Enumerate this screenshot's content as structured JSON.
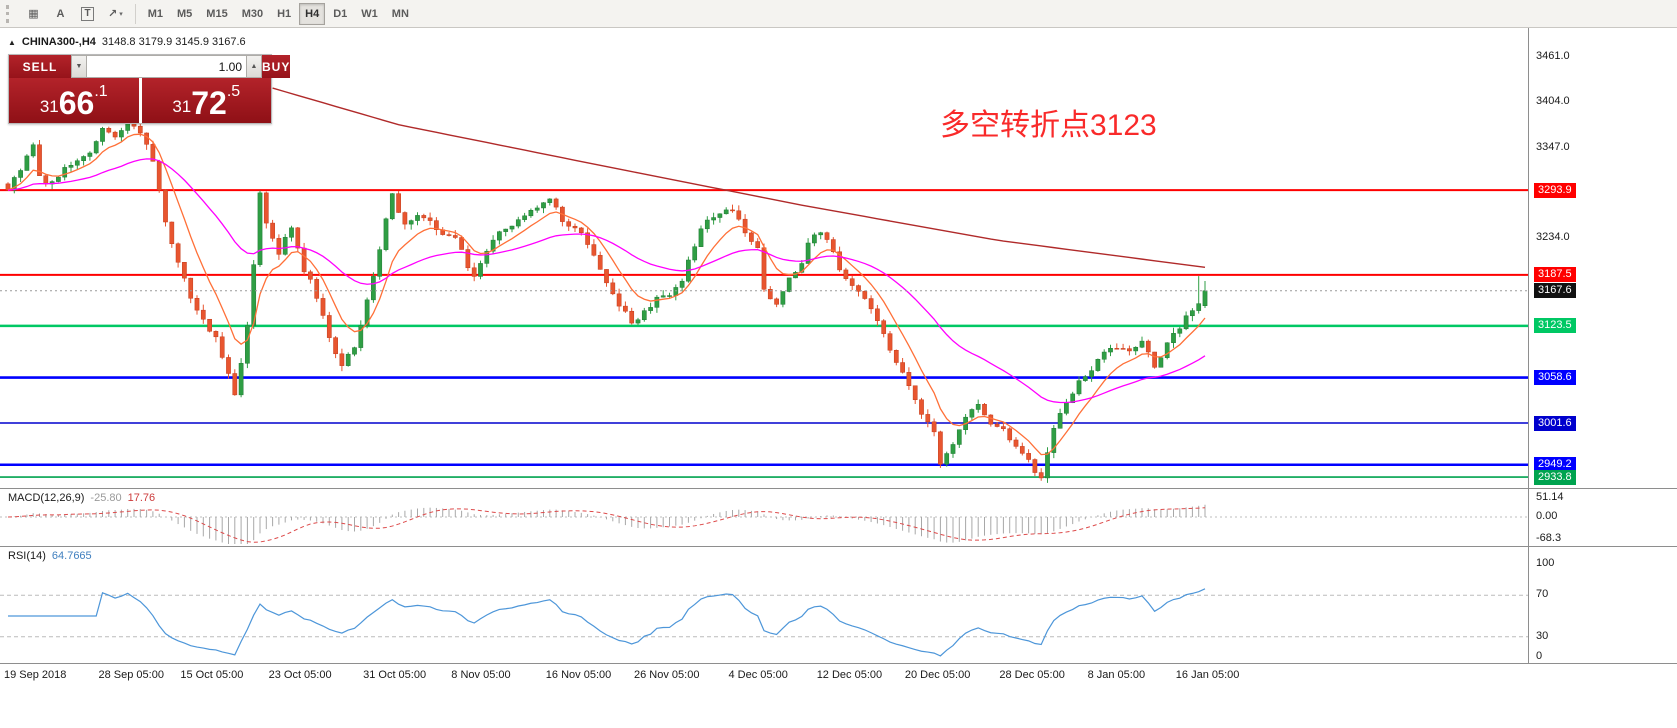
{
  "colors": {
    "up": "#2f9e44",
    "up_dark": "#1f7a33",
    "down": "#e8552f",
    "down_dark": "#c43c1c",
    "ma_fast": "#ff7038",
    "ma_mid": "#ff00ff",
    "ma_long": "#b02a2a",
    "macd_hist": "#a8a8a8",
    "macd_signal": "#dd4b4b",
    "rsi_line": "#4d96d9",
    "current_badge": "#111111",
    "annotation": "#f92a2a",
    "panel_red": "#a81a1f"
  },
  "toolbar": {
    "tools": [
      {
        "name": "grid-tool",
        "glyph": "▦",
        "dropdown": false
      },
      {
        "name": "text-tool",
        "glyph": "A",
        "dropdown": false
      },
      {
        "name": "textbox-tool",
        "glyph": "T",
        "dropdown": false
      },
      {
        "name": "arrow-tool",
        "glyph": "↗",
        "dropdown": true
      }
    ],
    "timeframes": [
      "M1",
      "M5",
      "M15",
      "M30",
      "H1",
      "H4",
      "D1",
      "W1",
      "MN"
    ],
    "active_timeframe": "H4"
  },
  "header": {
    "symbol_icon": "▲",
    "symbol": "CHINA300-,H4",
    "ohlc": "3148.8 3179.9 3145.9 3167.6"
  },
  "trade_panel": {
    "sell_label": "SELL",
    "buy_label": "BUY",
    "volume": "1.00",
    "sell_price_prefix": "31",
    "sell_price_big": "66",
    "sell_price_suffix": ".1",
    "buy_price_prefix": "31",
    "buy_price_big": "72",
    "buy_price_suffix": ".5"
  },
  "annotation": {
    "text": "多空转折点3123"
  },
  "price_axis": {
    "scale_labels": [
      {
        "text": "3461.0",
        "price": 3461.0
      },
      {
        "text": "3404.0",
        "price": 3404.0
      },
      {
        "text": "3347.0",
        "price": 3347.0
      },
      {
        "text": "3234.0",
        "price": 3234.0
      }
    ],
    "badges": [
      {
        "text": "3293.9",
        "price": 3293.9,
        "color": "#ff0000"
      },
      {
        "text": "3187.5",
        "price": 3187.5,
        "color": "#ff0000"
      },
      {
        "text": "3167.6",
        "price": 3167.6,
        "color": "#111111"
      },
      {
        "text": "3123.5",
        "price": 3123.5,
        "color": "#00c864"
      },
      {
        "text": "3058.6",
        "price": 3058.6,
        "color": "#0000ff"
      },
      {
        "text": "3001.6",
        "price": 3001.6,
        "color": "#0000cd"
      },
      {
        "text": "2949.2",
        "price": 2949.2,
        "color": "#0000ff"
      },
      {
        "text": "2933.8",
        "price": 2933.8,
        "color": "#00a34f"
      }
    ]
  },
  "macd_panel": {
    "name": "MACD(12,26,9)",
    "value_main": "-25.80",
    "value_signal": "17.76",
    "axis_labels": [
      "51.14",
      "0.00",
      "-68.3"
    ]
  },
  "rsi_panel": {
    "name": "RSI(14)",
    "value": "64.7665",
    "axis_labels": [
      "100",
      "70",
      "30",
      "0"
    ],
    "levels": [
      70,
      30
    ]
  },
  "time_axis": [
    {
      "label": "19 Sep 2018",
      "i": 0
    },
    {
      "label": "28 Sep 05:00",
      "i": 15
    },
    {
      "label": "15 Oct 05:00",
      "i": 28
    },
    {
      "label": "23 Oct 05:00",
      "i": 42
    },
    {
      "label": "31 Oct 05:00",
      "i": 57
    },
    {
      "label": "8 Nov 05:00",
      "i": 71
    },
    {
      "label": "16 Nov 05:00",
      "i": 86
    },
    {
      "label": "26 Nov 05:00",
      "i": 100
    },
    {
      "label": "4 Dec 05:00",
      "i": 115
    },
    {
      "label": "12 Dec 05:00",
      "i": 129
    },
    {
      "label": "20 Dec 05:00",
      "i": 143
    },
    {
      "label": "28 Dec 05:00",
      "i": 158
    },
    {
      "label": "8 Jan 05:00",
      "i": 172
    },
    {
      "label": "16 Jan 05:00",
      "i": 186
    }
  ],
  "chart_data": {
    "type": "candlestick",
    "symbol": "CHINA300-",
    "timeframe": "H4",
    "title": "CHINA300-,H4",
    "current_ohlc": {
      "open": 3148.8,
      "high": 3179.9,
      "low": 3145.9,
      "close": 3167.6
    },
    "bid": 3166.1,
    "ask": 3172.5,
    "current_price": 3167.6,
    "y_range": [
      2933.8,
      3461.0
    ],
    "candle_count": 191,
    "x_range": [
      "19 Sep 2018",
      "16 Jan 2019"
    ],
    "price_path": [
      [
        0,
        3295
      ],
      [
        2,
        3318
      ],
      [
        4,
        3352
      ],
      [
        5,
        3310
      ],
      [
        7,
        3302
      ],
      [
        9,
        3318
      ],
      [
        11,
        3328
      ],
      [
        13,
        3345
      ],
      [
        15,
        3370
      ],
      [
        17,
        3360
      ],
      [
        19,
        3382
      ],
      [
        21,
        3370
      ],
      [
        23,
        3330
      ],
      [
        25,
        3255
      ],
      [
        27,
        3200
      ],
      [
        29,
        3160
      ],
      [
        31,
        3130
      ],
      [
        33,
        3110
      ],
      [
        35,
        3060
      ],
      [
        36,
        3035
      ],
      [
        38,
        3120
      ],
      [
        39,
        3200
      ],
      [
        40,
        3290
      ],
      [
        41,
        3250
      ],
      [
        43,
        3215
      ],
      [
        45,
        3248
      ],
      [
        47,
        3195
      ],
      [
        49,
        3160
      ],
      [
        51,
        3105
      ],
      [
        53,
        3075
      ],
      [
        55,
        3095
      ],
      [
        57,
        3160
      ],
      [
        59,
        3220
      ],
      [
        61,
        3288
      ],
      [
        63,
        3250
      ],
      [
        65,
        3262
      ],
      [
        67,
        3255
      ],
      [
        69,
        3240
      ],
      [
        71,
        3232
      ],
      [
        73,
        3200
      ],
      [
        74,
        3186
      ],
      [
        76,
        3215
      ],
      [
        78,
        3240
      ],
      [
        80,
        3252
      ],
      [
        82,
        3262
      ],
      [
        84,
        3272
      ],
      [
        86,
        3282
      ],
      [
        88,
        3255
      ],
      [
        90,
        3248
      ],
      [
        92,
        3230
      ],
      [
        94,
        3198
      ],
      [
        96,
        3162
      ],
      [
        98,
        3140
      ],
      [
        99,
        3126
      ],
      [
        101,
        3142
      ],
      [
        103,
        3158
      ],
      [
        105,
        3162
      ],
      [
        107,
        3180
      ],
      [
        109,
        3225
      ],
      [
        111,
        3258
      ],
      [
        113,
        3266
      ],
      [
        115,
        3270
      ],
      [
        117,
        3236
      ],
      [
        119,
        3222
      ],
      [
        120,
        3165
      ],
      [
        122,
        3148
      ],
      [
        124,
        3182
      ],
      [
        126,
        3202
      ],
      [
        127,
        3228
      ],
      [
        129,
        3245
      ],
      [
        131,
        3215
      ],
      [
        133,
        3180
      ],
      [
        135,
        3168
      ],
      [
        137,
        3145
      ],
      [
        139,
        3112
      ],
      [
        141,
        3082
      ],
      [
        143,
        3048
      ],
      [
        145,
        3015
      ],
      [
        147,
        2988
      ],
      [
        148,
        2948
      ],
      [
        150,
        2972
      ],
      [
        152,
        3012
      ],
      [
        154,
        3022
      ],
      [
        156,
        3002
      ],
      [
        158,
        2996
      ],
      [
        160,
        2972
      ],
      [
        162,
        2952
      ],
      [
        164,
        2934
      ],
      [
        166,
        2992
      ],
      [
        168,
        3028
      ],
      [
        170,
        3052
      ],
      [
        172,
        3068
      ],
      [
        174,
        3088
      ],
      [
        176,
        3098
      ],
      [
        178,
        3092
      ],
      [
        180,
        3108
      ],
      [
        182,
        3072
      ],
      [
        184,
        3102
      ],
      [
        186,
        3124
      ],
      [
        188,
        3142
      ],
      [
        190,
        3167.6
      ]
    ],
    "ma_long_path": [
      [
        42,
        3422
      ],
      [
        62,
        3376
      ],
      [
        94,
        3325
      ],
      [
        126,
        3275
      ],
      [
        157,
        3231
      ],
      [
        190,
        3197
      ]
    ],
    "hlines": [
      {
        "price": 3293.9,
        "color": "#ff0000",
        "width": 2
      },
      {
        "price": 3187.5,
        "color": "#ff0000",
        "width": 2
      },
      {
        "price": 3123.5,
        "color": "#00c864",
        "width": 2.4
      },
      {
        "price": 3058.6,
        "color": "#0000ff",
        "width": 2.6
      },
      {
        "price": 3001.6,
        "color": "#0000cd",
        "width": 1.4
      },
      {
        "price": 2949.2,
        "color": "#0000ff",
        "width": 2.6
      },
      {
        "price": 2933.8,
        "color": "#00a34f",
        "width": 1.6
      }
    ],
    "indicators": [
      {
        "name": "MACD",
        "params": [
          12,
          26,
          9
        ],
        "main": -25.8,
        "signal": 17.76,
        "range": [
          -68.3,
          51.14
        ]
      },
      {
        "name": "RSI",
        "params": [
          14
        ],
        "value": 64.7665,
        "range": [
          0,
          100
        ],
        "levels": [
          70,
          30
        ]
      }
    ],
    "annotation_text": "多空转折点3123"
  }
}
